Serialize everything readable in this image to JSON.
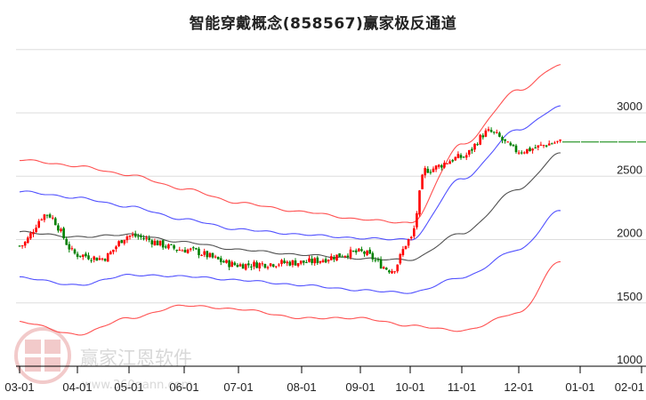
{
  "title": "智能穿戴概念(858567)赢家极反通道",
  "watermark": {
    "main": "赢家江恩软件",
    "url": "www.360gann.com",
    "logo": [
      "江",
      "赢",
      "恩",
      "家"
    ]
  },
  "colors": {
    "up": "#ff0000",
    "down": "#008000",
    "outer_band": "#ff3333",
    "inner_band": "#3333ff",
    "mid_line": "#333333",
    "last_price_line": "#008000",
    "grid": "#dddddd"
  },
  "chart_data": {
    "type": "candlestick",
    "title": "智能穿戴概念(858567)赢家极反通道",
    "y_ticks": [
      1000,
      1500,
      2000,
      2500,
      3000
    ],
    "ylim": [
      1000,
      3500
    ],
    "x_ticks": [
      "03-01",
      "04-01",
      "05-01",
      "06-01",
      "07-01",
      "08-01",
      "09-01",
      "10-01",
      "11-01",
      "12-01",
      "01-01",
      "02-01"
    ],
    "grid": true,
    "last_close": 2770,
    "series": [
      {
        "name": "outer_upper",
        "color": "red",
        "x": [
          "03-01",
          "04-01",
          "05-01",
          "06-01",
          "07-01",
          "08-01",
          "09-01",
          "10-01",
          "11-01",
          "12-01",
          "12-25"
        ],
        "values": [
          2630,
          2580,
          2510,
          2400,
          2290,
          2220,
          2160,
          2130,
          2750,
          3180,
          3380
        ]
      },
      {
        "name": "inner_upper",
        "color": "blue",
        "x": [
          "03-01",
          "04-01",
          "05-01",
          "06-01",
          "07-01",
          "08-01",
          "09-01",
          "10-01",
          "11-01",
          "12-01",
          "12-25"
        ],
        "values": [
          2380,
          2330,
          2260,
          2160,
          2080,
          2040,
          2010,
          2000,
          2480,
          2870,
          3050
        ]
      },
      {
        "name": "middle",
        "color": "black",
        "x": [
          "03-01",
          "04-01",
          "05-01",
          "06-01",
          "07-01",
          "08-01",
          "09-01",
          "10-01",
          "11-01",
          "12-01",
          "12-25"
        ],
        "values": [
          2060,
          2020,
          2040,
          1980,
          1920,
          1880,
          1850,
          1840,
          2050,
          2400,
          2680
        ]
      },
      {
        "name": "inner_lower",
        "color": "blue",
        "x": [
          "03-01",
          "04-01",
          "05-01",
          "06-01",
          "07-01",
          "08-01",
          "09-01",
          "10-01",
          "11-01",
          "12-01",
          "12-25"
        ],
        "values": [
          1700,
          1640,
          1720,
          1710,
          1680,
          1640,
          1600,
          1580,
          1700,
          1920,
          2230
        ]
      },
      {
        "name": "outer_lower",
        "color": "red",
        "x": [
          "03-01",
          "04-01",
          "05-01",
          "06-01",
          "07-01",
          "08-01",
          "09-01",
          "10-01",
          "11-01",
          "12-01",
          "12-25"
        ],
        "values": [
          1350,
          1250,
          1380,
          1480,
          1450,
          1380,
          1380,
          1320,
          1280,
          1420,
          1830
        ]
      },
      {
        "name": "price",
        "color": "red/green",
        "x": [
          "03-01",
          "03-15",
          "04-01",
          "04-15",
          "05-01",
          "06-01",
          "07-01",
          "08-01",
          "09-01",
          "09-20",
          "10-01",
          "10-10",
          "11-01",
          "11-15",
          "12-01",
          "12-25"
        ],
        "values": [
          1950,
          2200,
          1880,
          1850,
          2030,
          1920,
          1800,
          1820,
          1900,
          1760,
          2000,
          2550,
          2650,
          2850,
          2700,
          2770
        ]
      }
    ]
  }
}
